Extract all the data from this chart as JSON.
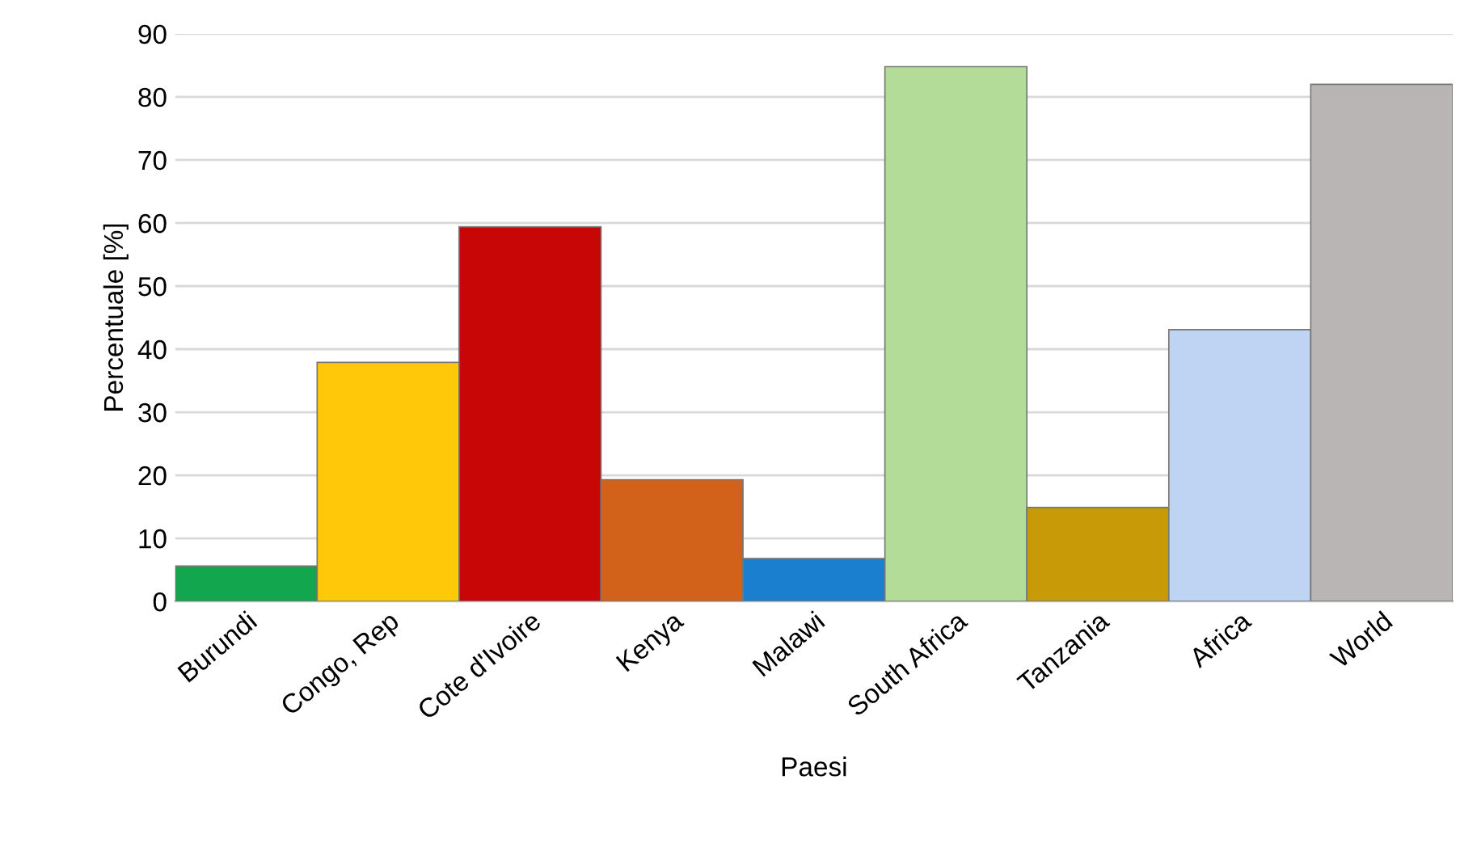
{
  "chart_data": {
    "type": "bar",
    "xlabel": "Paesi",
    "ylabel": "Percentuale [%]",
    "categories": [
      "Burundi",
      "Congo, Rep",
      "Cote d'Ivoire",
      "Kenya",
      "Malawi",
      "South Africa",
      "Tanzania",
      "Africa",
      "World"
    ],
    "values": [
      5.6,
      37.9,
      59.4,
      19.3,
      6.8,
      84.8,
      14.9,
      43.1,
      82.0
    ],
    "colors": [
      "#12a64e",
      "#ffc90a",
      "#c80606",
      "#d2621a",
      "#1a7fcf",
      "#b3dc98",
      "#c99a08",
      "#bfd3f2",
      "#b9b5b5"
    ],
    "ylim": [
      0,
      90
    ],
    "yticks": [
      0,
      10,
      20,
      30,
      40,
      50,
      60,
      70,
      80,
      90
    ],
    "grid": "y"
  }
}
